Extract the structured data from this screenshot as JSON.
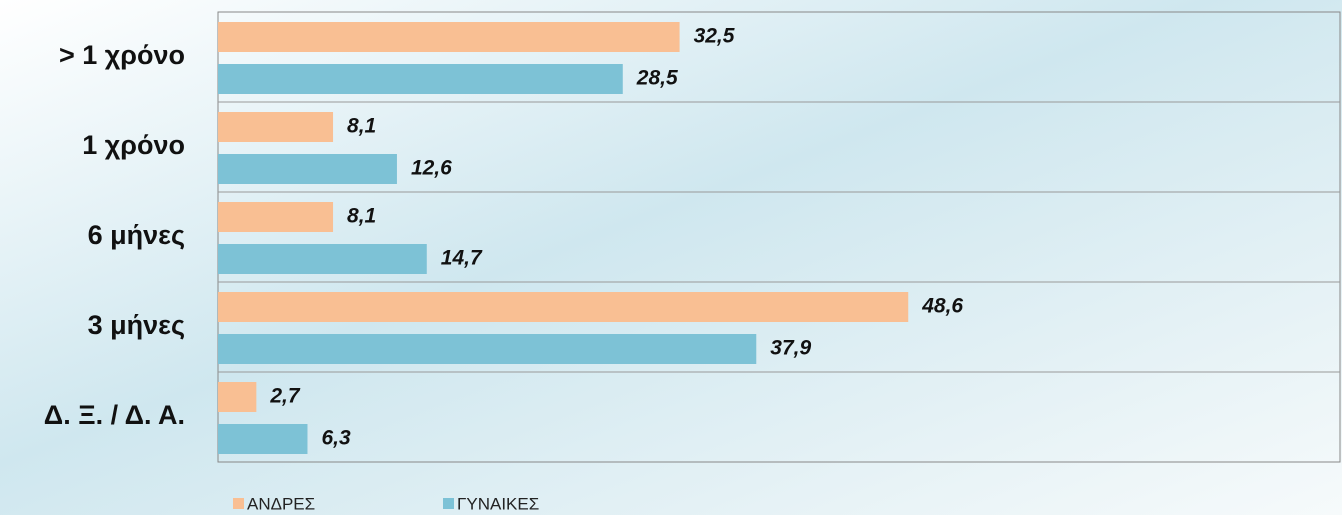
{
  "chart_data": {
    "type": "bar",
    "orientation": "horizontal",
    "categories": [
      "> 1 χρόνο",
      "1 χρόνο",
      "6 μήνες",
      "3 μήνες",
      "Δ. Ξ. / Δ. Α."
    ],
    "series": [
      {
        "name": "ΑΝΔΡΕΣ",
        "color": "#f9bf93",
        "values": [
          32.5,
          8.1,
          8.1,
          48.6,
          2.7
        ],
        "value_labels": [
          "32,5",
          "8,1",
          "8,1",
          "48,6",
          "2,7"
        ]
      },
      {
        "name": "ΓΥΝΑΙΚΕΣ",
        "color": "#7dc2d6",
        "values": [
          28.5,
          12.6,
          14.7,
          37.9,
          6.3
        ],
        "value_labels": [
          "28,5",
          "12,6",
          "14,7",
          "37,9",
          "6,3"
        ]
      }
    ],
    "xlim": [
      0,
      79
    ],
    "legend": "bottom-left"
  }
}
